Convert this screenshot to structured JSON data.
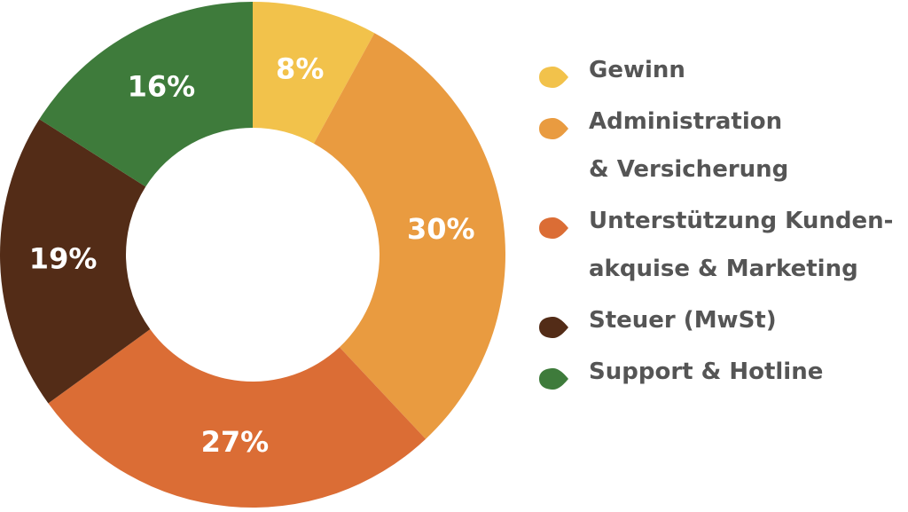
{
  "chart_data": {
    "type": "donut",
    "series": [
      {
        "name": "Gewinn",
        "color": "#f2c24b",
        "values": [
          8
        ],
        "value_labels": [
          "8%"
        ]
      },
      {
        "name": "Administration\n& Versicherung",
        "color": "#e99b40",
        "values": [
          30
        ],
        "value_labels": [
          "30%"
        ]
      },
      {
        "name": "Unterstützung Kunden-\nakquise & Marketing",
        "color": "#db6d35",
        "values": [
          27
        ],
        "value_labels": [
          "27%"
        ]
      },
      {
        "name": "Steuer (MwSt)",
        "color": "#532c17",
        "values": [
          19
        ],
        "value_labels": [
          "19%"
        ]
      },
      {
        "name": "Support & Hotline",
        "color": "#3e7b3b",
        "values": [
          16
        ],
        "value_labels": [
          "16%"
        ]
      }
    ],
    "legend": "right"
  }
}
